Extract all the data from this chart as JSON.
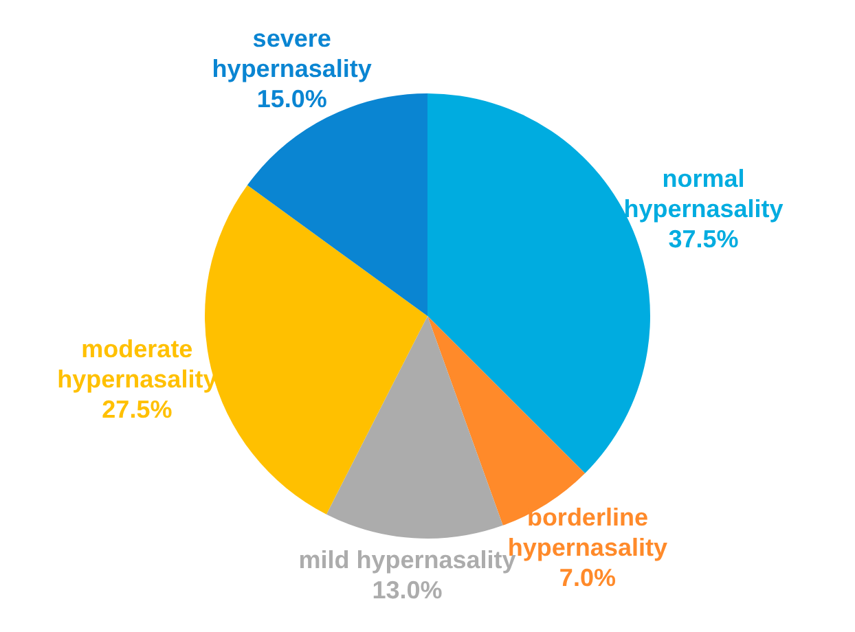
{
  "chart_data": {
    "type": "pie",
    "categories": [
      "normal hypernasality",
      "borderline hypernasality",
      "mild hypernasality",
      "moderate hypernasality",
      "severe hypernasality"
    ],
    "values": [
      37.5,
      7.0,
      13.0,
      27.5,
      15.0
    ],
    "value_labels": [
      "37.5%",
      "7.0%",
      "13.0%",
      "27.5%",
      "15.0%"
    ],
    "colors": [
      "#00ace0",
      "#ff8a2a",
      "#acacac",
      "#ffc000",
      "#0a85d2"
    ],
    "legend": false
  }
}
